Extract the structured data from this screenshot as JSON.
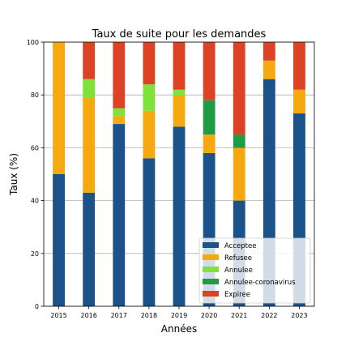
{
  "chart_data": {
    "type": "bar",
    "stacked": true,
    "title": "Taux de suite pour les demandes",
    "xlabel": "Années",
    "ylabel": "Taux (%)",
    "ylim": [
      0,
      100
    ],
    "yticks": [
      0,
      20,
      40,
      60,
      80,
      100
    ],
    "grid": "horizontal",
    "legend_position": "bottom-right",
    "categories": [
      "2015",
      "2016",
      "2017",
      "2018",
      "2019",
      "2020",
      "2021",
      "2022",
      "2023"
    ],
    "series": [
      {
        "name": "Acceptee",
        "color": "#1a5289",
        "values": [
          50,
          43,
          69,
          56,
          68,
          58,
          40,
          86,
          73
        ]
      },
      {
        "name": "Refusee",
        "color": "#f5a90e",
        "values": [
          50,
          36,
          3,
          18,
          12,
          7,
          20,
          7,
          9
        ]
      },
      {
        "name": "Annulee",
        "color": "#7ee23a",
        "values": [
          0,
          7,
          3,
          10,
          2,
          0,
          0,
          0,
          0
        ]
      },
      {
        "name": "Annulee-coronavirus",
        "color": "#1f9b45",
        "values": [
          0,
          0,
          0,
          0,
          0,
          13,
          5,
          0,
          0
        ]
      },
      {
        "name": "Expiree",
        "color": "#dc4324",
        "values": [
          0,
          14,
          25,
          16,
          18,
          22,
          35,
          7,
          18
        ]
      }
    ]
  }
}
